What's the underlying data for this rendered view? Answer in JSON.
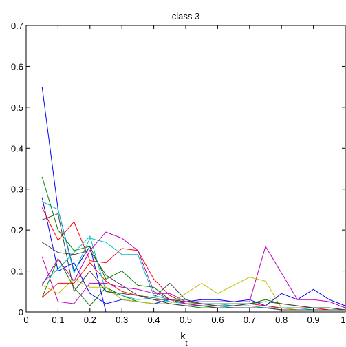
{
  "chart_data": {
    "type": "line",
    "title": "class 3",
    "xlabel_main": "k",
    "xlabel_sub": "t",
    "ylabel": "",
    "xlim": [
      0,
      1
    ],
    "ylim": [
      0,
      0.7
    ],
    "xticks": [
      "0",
      "0.1",
      "0.2",
      "0.3",
      "0.4",
      "0.5",
      "0.6",
      "0.7",
      "0.8",
      "0.9",
      "1"
    ],
    "yticks": [
      "0",
      "0.1",
      "0.2",
      "0.3",
      "0.4",
      "0.5",
      "0.6",
      "0.7"
    ],
    "grid": false,
    "x": [
      0.05,
      0.1,
      0.15,
      0.2,
      0.25,
      0.3,
      0.35,
      0.4,
      0.45,
      0.5,
      0.55,
      0.6,
      0.65,
      0.7,
      0.75,
      0.8,
      0.85,
      0.9,
      0.95,
      1.0
    ],
    "series": [
      {
        "color": "#0000ff",
        "values": [
          0.55,
          0.25,
          0.1,
          0.16,
          0.0,
          0.0,
          0.0,
          0.0,
          0.0,
          0.0,
          0.0,
          0.0,
          0.0,
          0.0,
          0.0,
          0.0,
          0.0,
          0.0,
          0.0,
          0.0
        ]
      },
      {
        "color": "#0000ff",
        "values": [
          0.28,
          0.1,
          0.12,
          0.045,
          0.02,
          0.03,
          0.025,
          0.02,
          0.03,
          0.025,
          0.03,
          0.03,
          0.025,
          0.03,
          0.015,
          0.045,
          0.03,
          0.055,
          0.03,
          0.015
        ]
      },
      {
        "color": "#008000",
        "values": [
          0.33,
          0.2,
          0.15,
          0.16,
          0.08,
          0.1,
          0.065,
          0.06,
          0.03,
          0.025,
          0.02,
          0.02,
          0.02,
          0.02,
          0.03,
          0.02,
          0.015,
          0.01,
          0.01,
          0.005
        ]
      },
      {
        "color": "#008000",
        "values": [
          0.035,
          0.13,
          0.06,
          0.015,
          0.06,
          0.04,
          0.025,
          0.02,
          0.02,
          0.015,
          0.01,
          0.01,
          0.01,
          0.01,
          0.01,
          0.005,
          0.005,
          0.005,
          0.005,
          0.005
        ]
      },
      {
        "color": "#ff0000",
        "values": [
          0.255,
          0.175,
          0.22,
          0.125,
          0.12,
          0.155,
          0.15,
          0.08,
          0.04,
          0.02,
          0.02,
          0.015,
          0.015,
          0.02,
          0.015,
          0.01,
          0.01,
          0.01,
          0.005,
          0.005
        ]
      },
      {
        "color": "#ff0000",
        "values": [
          0.035,
          0.07,
          0.07,
          0.12,
          0.075,
          0.05,
          0.04,
          0.03,
          0.03,
          0.02,
          0.015,
          0.015,
          0.01,
          0.01,
          0.01,
          0.01,
          0.005,
          0.005,
          0.005,
          0.005
        ]
      },
      {
        "color": "#00bfbf",
        "values": [
          0.27,
          0.25,
          0.095,
          0.18,
          0.17,
          0.14,
          0.14,
          0.04,
          0.03,
          0.03,
          0.02,
          0.02,
          0.015,
          0.015,
          0.01,
          0.01,
          0.01,
          0.005,
          0.005,
          0.005
        ]
      },
      {
        "color": "#00bfbf",
        "values": [
          0.07,
          0.105,
          0.145,
          0.185,
          0.05,
          0.04,
          0.03,
          0.035,
          0.025,
          0.02,
          0.015,
          0.015,
          0.01,
          0.01,
          0.01,
          0.005,
          0.005,
          0.005,
          0.005,
          0.005
        ]
      },
      {
        "color": "#bf00bf",
        "values": [
          0.135,
          0.025,
          0.02,
          0.07,
          0.07,
          0.06,
          0.055,
          0.045,
          0.045,
          0.025,
          0.025,
          0.025,
          0.025,
          0.025,
          0.16,
          0.095,
          0.03,
          0.03,
          0.025,
          0.01
        ]
      },
      {
        "color": "#bf00bf",
        "values": [
          0.065,
          0.13,
          0.075,
          0.15,
          0.195,
          0.18,
          0.15,
          0.05,
          0.03,
          0.02,
          0.015,
          0.01,
          0.01,
          0.01,
          0.01,
          0.005,
          0.005,
          0.005,
          0.005,
          0.005
        ]
      },
      {
        "color": "#bfbf00",
        "values": [
          0.065,
          0.045,
          0.08,
          0.06,
          0.06,
          0.03,
          0.025,
          0.02,
          0.02,
          0.045,
          0.07,
          0.045,
          0.065,
          0.085,
          0.075,
          0.01,
          0.005,
          0.005,
          0.005,
          0.005
        ]
      },
      {
        "color": "#404040",
        "values": [
          0.17,
          0.145,
          0.14,
          0.15,
          0.09,
          0.065,
          0.04,
          0.035,
          0.07,
          0.03,
          0.02,
          0.015,
          0.015,
          0.02,
          0.025,
          0.02,
          0.015,
          0.01,
          0.01,
          0.005
        ]
      },
      {
        "color": "#404040",
        "values": [
          0.225,
          0.24,
          0.05,
          0.1,
          0.05,
          0.045,
          0.04,
          0.03,
          0.02,
          0.015,
          0.015,
          0.01,
          0.01,
          0.01,
          0.01,
          0.005,
          0.005,
          0.005,
          0.005,
          0.005
        ]
      }
    ]
  }
}
